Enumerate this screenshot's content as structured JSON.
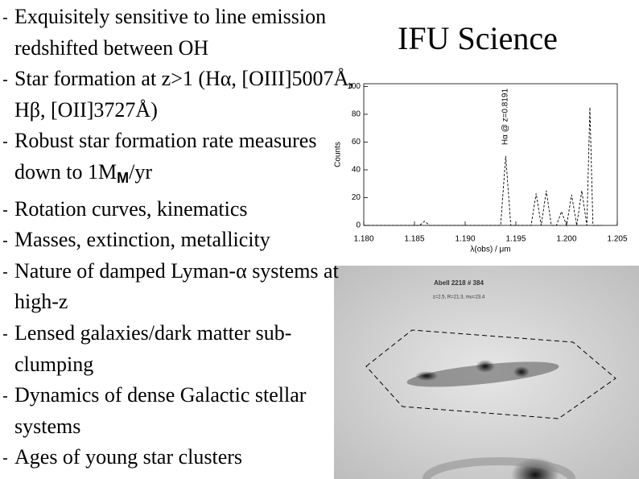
{
  "title": "IFU Science",
  "bullets": [
    {
      "text": "Exquisitely sensitive to line emission redshifted between OH"
    },
    {
      "text": "Star formation at z>1 (Hα, [OIII]5007Å, Hβ, [OII]3727Å)"
    },
    {
      "text": "Robust star formation rate measures down to 1M",
      "sub": "M",
      "after": "/yr"
    },
    {
      "text": "Rotation curves, kinematics"
    },
    {
      "text": "Masses, extinction, metallicity"
    },
    {
      "text": "Nature of damped Lyman-α systems at high-z"
    },
    {
      "text": "Lensed galaxies/dark matter sub-clumping"
    },
    {
      "text": "Dynamics of dense Galactic stellar systems"
    },
    {
      "text": "Ages of young star clusters"
    }
  ],
  "chart_data": {
    "type": "line",
    "annotation": "Hα @ z=0.8191",
    "x_label": "λ(obs) / μm",
    "y_label": "Counts",
    "x": [
      1.18,
      1.1855,
      1.186,
      1.1865,
      1.1935,
      1.194,
      1.1945,
      1.1965,
      1.197,
      1.1975,
      1.198,
      1.1985,
      1.199,
      1.1995,
      1.2,
      1.2005,
      1.201,
      1.2015,
      1.202,
      1.2023,
      1.2026,
      1.2035
    ],
    "values": [
      0,
      0,
      3,
      0,
      0,
      50,
      0,
      0,
      23,
      0,
      25,
      0,
      0,
      10,
      0,
      22,
      0,
      25,
      0,
      85,
      0,
      0
    ],
    "color": "#000000",
    "xlim": [
      1.18,
      1.205
    ],
    "ylim": [
      0,
      102
    ],
    "xticks": [
      {
        "value": 1.18,
        "label": "1.180"
      },
      {
        "value": 1.185,
        "label": "1.185"
      },
      {
        "value": 1.19,
        "label": "1.190"
      },
      {
        "value": 1.195,
        "label": "1.195"
      },
      {
        "value": 1.2,
        "label": "1.200"
      },
      {
        "value": 1.205,
        "label": "1.205"
      }
    ],
    "yticks": [
      0,
      20,
      40,
      60,
      80,
      100
    ]
  },
  "image": {
    "label": "Abell 2218 # 384",
    "caption": "z=2.5, R=21.3, mu=23.4"
  }
}
